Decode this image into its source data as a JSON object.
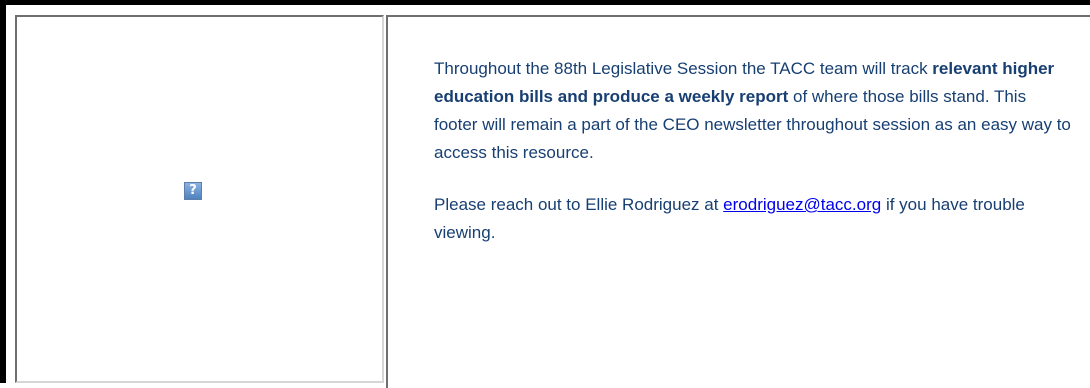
{
  "left_cell": {
    "image_placeholder_icon": "question-mark-icon"
  },
  "message": {
    "paragraph1_intro": "Throughout the 88th Legislative Session the TACC team will track ",
    "paragraph1_bold": "relevant higher education bills and produce a weekly report",
    "paragraph1_rest": " of where those bills stand. This footer will remain a part of the CEO newsletter throughout session as an easy way to access this resource.",
    "paragraph2_intro": "Please reach out to Ellie Rodriguez at ",
    "contact_email": "erodriguez@tacc.org",
    "paragraph2_rest": " if you have trouble viewing."
  },
  "colors": {
    "text": "#173f72",
    "link": "#0000ee",
    "outer_border": "#000000"
  }
}
